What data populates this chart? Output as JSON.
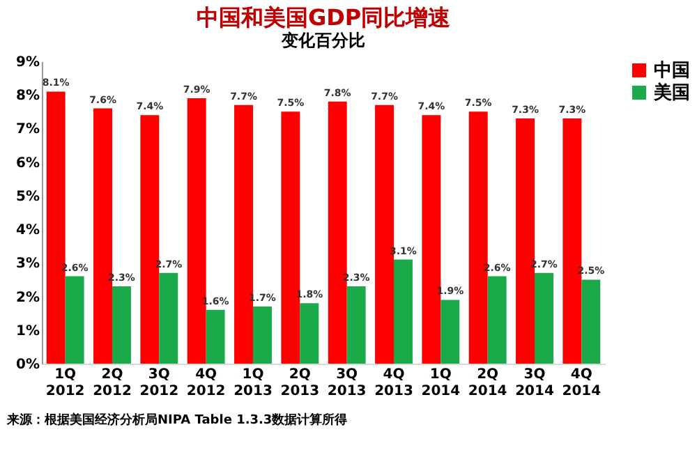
{
  "chart_data": {
    "type": "bar",
    "title": "中国和美国GDP同比增速",
    "subtitle": "变化百分比",
    "categories": [
      "1Q 2012",
      "2Q 2012",
      "3Q 2012",
      "4Q 2012",
      "1Q 2013",
      "2Q 2013",
      "3Q 2013",
      "4Q 2013",
      "1Q 2014",
      "2Q 2014",
      "3Q 2014",
      "4Q 2014"
    ],
    "series": [
      {
        "name": "中国",
        "color": "#ff0000",
        "values": [
          8.1,
          7.6,
          7.4,
          7.9,
          7.7,
          7.5,
          7.8,
          7.7,
          7.4,
          7.5,
          7.3,
          7.3
        ],
        "value_labels": [
          "8.1%",
          "7.6%",
          "7.4%",
          "7.9%",
          "7.7%",
          "7.5%",
          "7.8%",
          "7.7%",
          "7.4%",
          "7.5%",
          "7.3%",
          "7.3%"
        ]
      },
      {
        "name": "美国",
        "color": "#1aaa4a",
        "values": [
          2.6,
          2.3,
          2.7,
          1.6,
          1.7,
          1.8,
          2.3,
          3.1,
          1.9,
          2.6,
          2.7,
          2.5
        ],
        "value_labels": [
          "2.6%",
          "2.3%",
          "2.7%",
          "1.6%",
          "1.7%",
          "1.8%",
          "2.3%",
          "3.1%",
          "1.9%",
          "2.6%",
          "2.7%",
          "2.5%"
        ]
      }
    ],
    "ylim": [
      0,
      9
    ],
    "yticks": [
      {
        "value": 0,
        "label": "0%"
      },
      {
        "value": 1,
        "label": "1%"
      },
      {
        "value": 2,
        "label": "2%"
      },
      {
        "value": 3,
        "label": "3%"
      },
      {
        "value": 4,
        "label": "4%"
      },
      {
        "value": 5,
        "label": "5%"
      },
      {
        "value": 6,
        "label": "6%"
      },
      {
        "value": 7,
        "label": "7%"
      },
      {
        "value": 8,
        "label": "8%"
      },
      {
        "value": 9,
        "label": "9%"
      }
    ],
    "grid": false,
    "legend": "right",
    "annotations": [
      "来源：根据美国经济分析局NIPA Table 1.3.3数据计算所得"
    ]
  }
}
